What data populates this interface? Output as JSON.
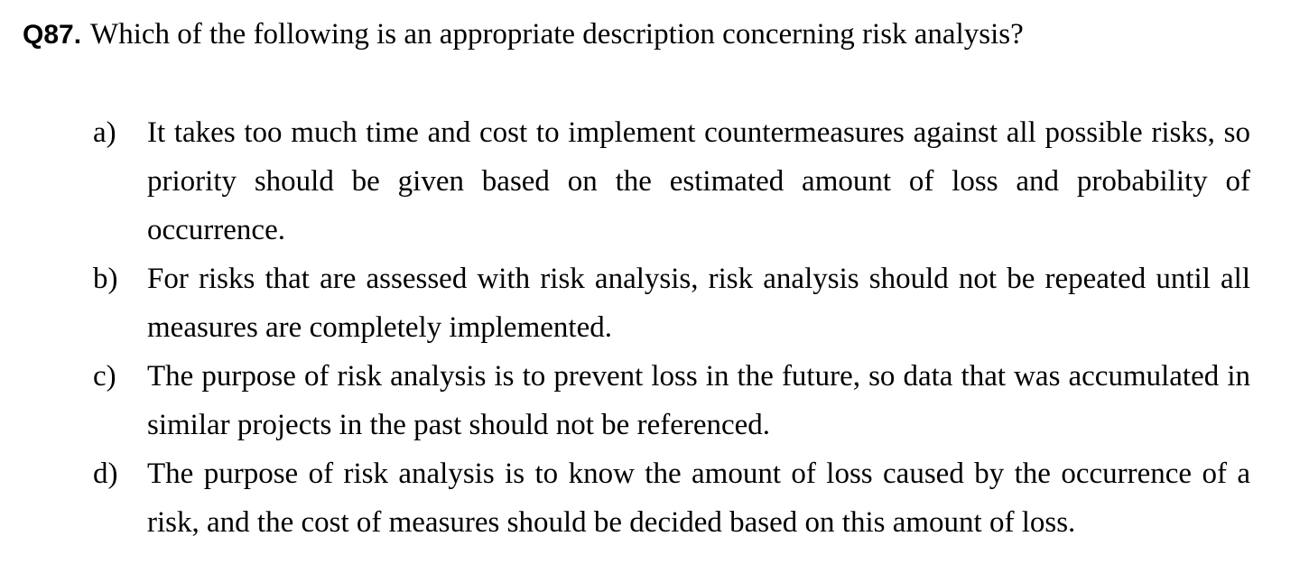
{
  "question": {
    "number": "Q87.",
    "text": "Which of the following is an appropriate description concerning risk analysis?"
  },
  "options": [
    {
      "label": "a)",
      "text": "It takes too much time and cost to implement countermeasures against all possible risks, so priority should be given based on the estimated amount of loss and probability of occurrence."
    },
    {
      "label": "b)",
      "text": "For risks that are assessed with risk analysis, risk analysis should not be repeated until all measures are completely implemented."
    },
    {
      "label": "c)",
      "text": "The purpose of risk analysis is to prevent loss in the future, so data that was accumulated in similar projects in the past should not be referenced."
    },
    {
      "label": "d)",
      "text": "The purpose of risk analysis is to know the amount of loss caused by the occurrence of a risk, and the cost of measures should be decided based on this amount of loss."
    }
  ]
}
